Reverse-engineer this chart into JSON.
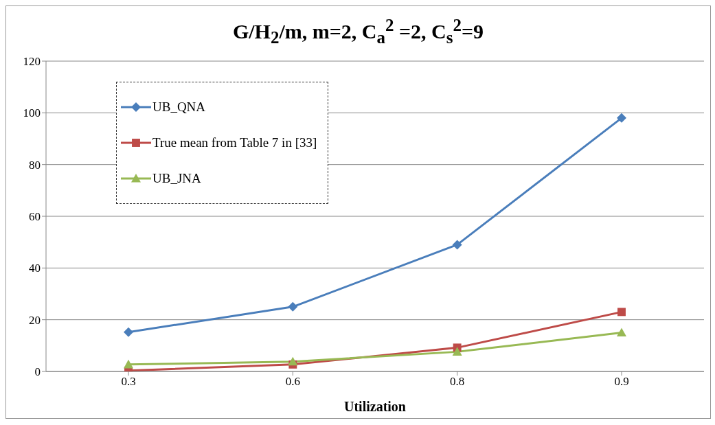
{
  "chart_data": {
    "type": "line",
    "title": "G/H$_{2}$/m, m=2, C$_{a}$$^{2}$ =2, C$_{s}$$^{2}$=9",
    "xlabel": "Utilization",
    "categories": [
      "0.3",
      "0.6",
      "0.8",
      "0.9"
    ],
    "series": [
      {
        "name": "UB_QNA",
        "color": "#4a7ebb",
        "values": [
          15.2,
          25,
          49,
          98
        ],
        "marker": "diamond"
      },
      {
        "name": "True mean from Table 7 in [33]",
        "color": "#be4b48",
        "values": [
          0.3,
          2.7,
          9.2,
          23
        ],
        "marker": "square"
      },
      {
        "name": "UB_JNA",
        "color": "#98b954",
        "values": [
          2.7,
          3.8,
          7.6,
          15
        ],
        "marker": "triangle"
      }
    ],
    "ylim": [
      0,
      120
    ],
    "yticks": [
      0,
      20,
      40,
      60,
      80,
      100,
      120
    ],
    "grid": "y",
    "legend": "top left",
    "line_style": "solid"
  }
}
